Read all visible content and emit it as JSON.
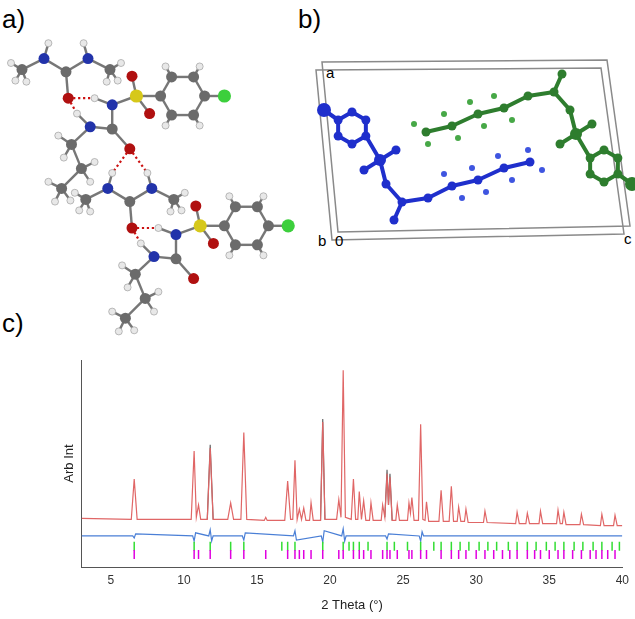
{
  "panels": [
    {
      "label": "a)"
    },
    {
      "label": "b)",
      "cell_axis_labels": [
        "a",
        "b",
        "0",
        "c"
      ]
    },
    {
      "label": "c)"
    }
  ],
  "chart_data": {
    "type": "line",
    "xlabel": "2 Theta (°)",
    "ylabel": "Arb Int",
    "xlim": [
      3,
      40
    ],
    "xticks": [
      5,
      10,
      15,
      20,
      25,
      30,
      35,
      40
    ],
    "ylim": [
      0,
      100
    ],
    "tick_labels": "x",
    "grid": false,
    "series": [
      {
        "type": "line",
        "color": "#666666",
        "x": [
          11.6,
          11.8,
          12.0,
          12.1,
          19.35,
          19.5,
          19.65,
          19.7,
          23.75,
          23.9,
          24.0,
          24.1,
          24.25
        ],
        "values": [
          23,
          59,
          23,
          null,
          22.5,
          71.5,
          23,
          null,
          24,
          47,
          30,
          45,
          22.5
        ]
      },
      {
        "type": "line",
        "color": "#e06666",
        "x": [
          3,
          6.4,
          6.6,
          6.8,
          10.5,
          10.7,
          10.85,
          11.0,
          11.15,
          11.6,
          11.8,
          12.0,
          13.0,
          13.2,
          13.4,
          13.9,
          14.1,
          14.3,
          15.5,
          15.6,
          15.7,
          16.9,
          17.1,
          17.3,
          17.45,
          17.6,
          17.75,
          17.9,
          18.05,
          18.2,
          18.35,
          18.6,
          18.7,
          18.85,
          19.35,
          19.5,
          19.65,
          20.45,
          20.6,
          20.75,
          20.9,
          21.05,
          21.45,
          21.6,
          21.75,
          21.9,
          22.0,
          22.15,
          22.3,
          22.45,
          22.7,
          22.8,
          22.95,
          23.5,
          23.6,
          23.75,
          23.9,
          24.0,
          24.1,
          24.25,
          24.5,
          24.6,
          24.75,
          25.3,
          25.4,
          25.5,
          25.6,
          25.75,
          26.05,
          26.2,
          26.35,
          26.5,
          26.6,
          26.75,
          27.45,
          27.6,
          27.75,
          28.15,
          28.3,
          28.45,
          28.7,
          28.8,
          28.95,
          29.2,
          29.3,
          29.45,
          30.5,
          30.6,
          30.75,
          32.7,
          32.8,
          32.95,
          33.4,
          33.5,
          33.65,
          34.3,
          34.4,
          34.55,
          35.5,
          35.6,
          35.75,
          35.9,
          36.0,
          36.15,
          37.1,
          37.2,
          37.35,
          38.5,
          38.6,
          38.75,
          39.4,
          39.5,
          39.65,
          40
        ],
        "values": [
          23.5,
          23,
          42.5,
          23,
          23,
          56,
          24,
          30,
          23,
          23,
          57.5,
          23,
          23,
          31,
          23,
          23,
          65,
          23,
          22.5,
          24,
          22.5,
          22.5,
          41.5,
          23,
          23,
          51.5,
          23,
          28,
          23,
          28.5,
          22.5,
          22.5,
          31,
          22.5,
          22.5,
          70,
          23,
          23,
          32.5,
          24,
          95,
          24,
          23,
          42.5,
          23,
          23,
          36.5,
          23,
          32,
          22.5,
          22.5,
          31,
          22.5,
          22.5,
          30,
          24,
          45,
          30,
          43.5,
          22.5,
          22.5,
          30,
          22.5,
          22.5,
          31,
          26,
          33.5,
          22.5,
          22.5,
          69,
          23,
          22.5,
          31.5,
          22,
          22,
          37,
          22,
          22,
          39,
          22,
          22,
          29,
          22,
          22,
          28,
          21.5,
          21.5,
          27,
          21.5,
          21,
          26.5,
          21,
          21,
          26,
          21,
          21,
          27,
          21,
          21,
          27.5,
          21,
          21,
          26.5,
          20.5,
          20.5,
          25.5,
          20.5,
          20,
          25.5,
          20,
          20,
          25,
          20,
          20
        ]
      },
      {
        "type": "line",
        "color": "#4a7fd6",
        "x": [
          3,
          6.5,
          6.6,
          6.7,
          10.6,
          10.7,
          10.8,
          11.7,
          11.8,
          11.9,
          12.0,
          14.0,
          14.1,
          14.2,
          17.5,
          17.6,
          17.7,
          19.4,
          19.5,
          19.6,
          20.8,
          20.9,
          21.0,
          21.1,
          23.8,
          23.9,
          24.0,
          26.1,
          26.2,
          26.3,
          26.4,
          40
        ],
        "values": [
          15,
          15,
          14,
          16,
          15,
          12.5,
          16.5,
          15,
          18,
          12.5,
          15,
          15,
          13,
          16.5,
          15,
          17.5,
          13,
          15,
          12,
          17.5,
          15,
          18.5,
          12.5,
          15,
          15,
          13.5,
          16,
          15,
          12.5,
          17,
          15,
          15
        ]
      },
      {
        "type": "scatter",
        "marker": "vline",
        "color": "#33dd33",
        "x": [
          6.6,
          10.7,
          11.8,
          13.2,
          14.1,
          16.7,
          17.1,
          17.6,
          19.5,
          20.9,
          21.3,
          21.6,
          22.0,
          22.6,
          23.9,
          24.4,
          25.3,
          26.2,
          27.1,
          27.6,
          28.3,
          28.9,
          29.5,
          30.2,
          30.8,
          31.4,
          32.2,
          32.8,
          33.5,
          34.1,
          34.8,
          35.4,
          36.0,
          36.7,
          37.3,
          38.0,
          38.6,
          39.3,
          39.8
        ],
        "values": [
          10,
          10,
          10,
          10,
          10,
          10,
          10,
          10,
          10,
          10,
          10,
          10,
          10,
          10,
          10,
          10,
          10,
          10,
          10,
          10,
          10,
          10,
          10,
          10,
          10,
          10,
          10,
          10,
          10,
          10,
          10,
          10,
          10,
          10,
          10,
          10,
          10,
          10,
          10
        ]
      },
      {
        "type": "scatter",
        "marker": "vline",
        "color": "#e000e0",
        "x": [
          6.6,
          10.7,
          11.0,
          11.8,
          13.2,
          14.1,
          15.6,
          17.1,
          17.6,
          17.9,
          18.2,
          18.7,
          19.5,
          20.6,
          20.9,
          21.6,
          22.0,
          22.3,
          22.8,
          23.6,
          23.9,
          24.1,
          24.6,
          25.4,
          25.6,
          26.2,
          26.6,
          27.6,
          28.3,
          28.8,
          29.3,
          30.0,
          30.6,
          31.2,
          31.8,
          32.3,
          32.8,
          33.5,
          34.0,
          34.4,
          35.0,
          35.6,
          36.0,
          36.6,
          37.2,
          37.8,
          38.2,
          38.6,
          39.0,
          39.5
        ],
        "values": [
          6,
          6,
          6,
          6,
          6,
          6,
          6,
          6,
          6,
          6,
          6,
          6,
          6,
          6,
          6,
          6,
          6,
          6,
          6,
          6,
          6,
          6,
          6,
          6,
          6,
          6,
          6,
          6,
          6,
          6,
          6,
          6,
          6,
          6,
          6,
          6,
          6,
          6,
          6,
          6,
          6,
          6,
          6,
          6,
          6,
          6,
          6,
          6,
          6,
          6
        ]
      }
    ]
  }
}
